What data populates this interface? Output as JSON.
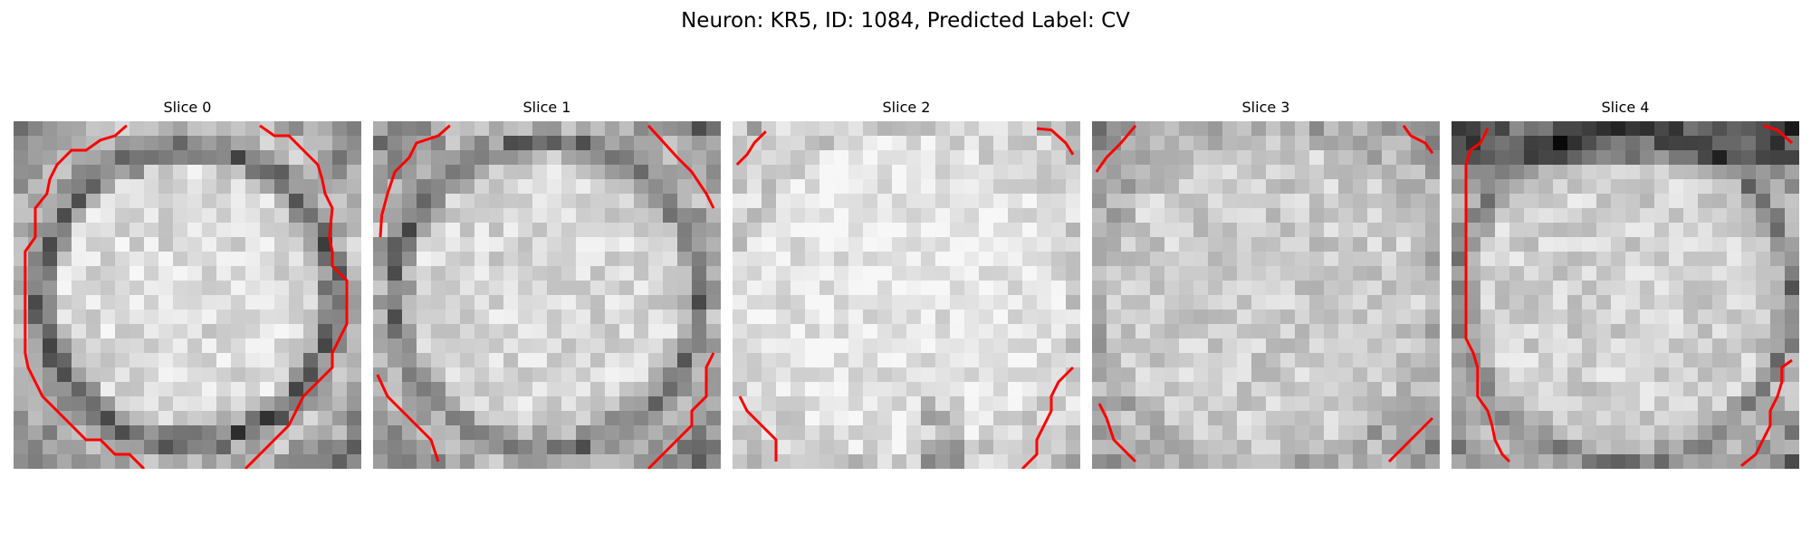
{
  "figure": {
    "title": "Neuron: KR5, ID: 1084, Predicted Label: CV",
    "contour_color": "#ff0000",
    "slices": [
      {
        "label": "Slice 0"
      },
      {
        "label": "Slice 1"
      },
      {
        "label": "Slice 2"
      },
      {
        "label": "Slice 3"
      },
      {
        "label": "Slice 4"
      }
    ]
  }
}
